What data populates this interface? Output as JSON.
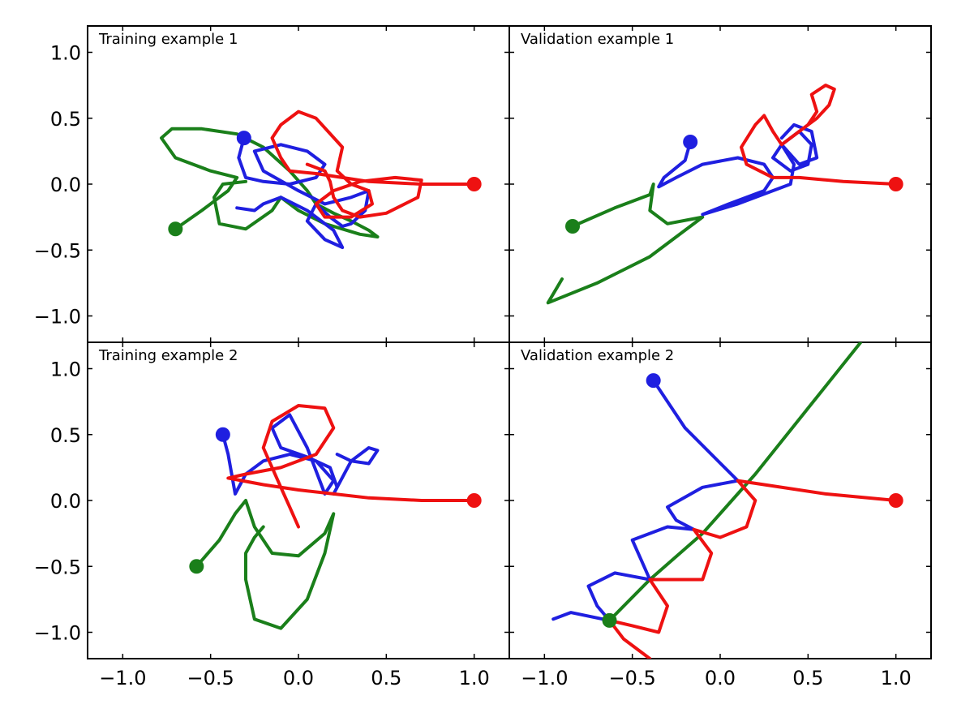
{
  "chart_data": [
    {
      "type": "line",
      "title": "Training example 1",
      "xlim": [
        -1.2,
        1.2
      ],
      "ylim": [
        -1.2,
        1.2
      ],
      "xticks": [
        -1.0,
        -0.5,
        0.0,
        0.5,
        1.0
      ],
      "yticks": [
        1.0,
        0.5,
        0.0,
        -0.5,
        -1.0
      ],
      "series": [
        {
          "name": "green",
          "color": "#1a7f1a",
          "start": [
            -0.7,
            -0.34
          ],
          "x": [
            -0.7,
            -0.55,
            -0.4,
            -0.35,
            -0.5,
            -0.7,
            -0.78,
            -0.72,
            -0.55,
            -0.35,
            -0.2,
            -0.05,
            0.05,
            0.1,
            0.2,
            0.3,
            0.4,
            0.45,
            0.35,
            0.15,
            0.0,
            -0.1,
            -0.15,
            -0.3,
            -0.45,
            -0.48,
            -0.43,
            -0.3
          ],
          "y": [
            -0.34,
            -0.2,
            -0.05,
            0.05,
            0.1,
            0.2,
            0.35,
            0.42,
            0.42,
            0.38,
            0.28,
            0.1,
            -0.05,
            -0.15,
            -0.22,
            -0.28,
            -0.35,
            -0.4,
            -0.38,
            -0.3,
            -0.2,
            -0.1,
            -0.2,
            -0.34,
            -0.3,
            -0.1,
            0.0,
            0.02
          ]
        },
        {
          "name": "blue",
          "color": "#1f1fe0",
          "start": [
            -0.31,
            0.35
          ],
          "x": [
            -0.31,
            -0.34,
            -0.3,
            -0.2,
            -0.05,
            0.1,
            0.15,
            0.05,
            -0.1,
            -0.25,
            -0.2,
            0.0,
            0.15,
            0.3,
            0.4,
            0.38,
            0.3,
            0.25,
            0.18,
            0.1,
            0.05,
            0.15,
            0.25,
            0.2,
            0.05,
            -0.1,
            -0.2,
            -0.25,
            -0.35
          ],
          "y": [
            0.35,
            0.2,
            0.05,
            0.02,
            0.0,
            0.05,
            0.15,
            0.25,
            0.3,
            0.25,
            0.1,
            -0.05,
            -0.15,
            -0.1,
            -0.05,
            -0.2,
            -0.3,
            -0.32,
            -0.25,
            -0.15,
            -0.28,
            -0.42,
            -0.48,
            -0.35,
            -0.2,
            -0.1,
            -0.15,
            -0.2,
            -0.18
          ]
        },
        {
          "name": "red",
          "color": "#ee1111",
          "start": [
            1.0,
            0.0
          ],
          "x": [
            1.0,
            0.7,
            0.4,
            0.25,
            0.1,
            -0.05,
            -0.1,
            -0.15,
            -0.1,
            0.0,
            0.1,
            0.25,
            0.22,
            0.3,
            0.4,
            0.42,
            0.3,
            0.15,
            0.1,
            0.2,
            0.35,
            0.55,
            0.7,
            0.68,
            0.5,
            0.35,
            0.25,
            0.2,
            0.18,
            0.15,
            0.05
          ],
          "y": [
            0.0,
            0.0,
            0.02,
            0.05,
            0.08,
            0.1,
            0.2,
            0.35,
            0.45,
            0.55,
            0.5,
            0.28,
            0.1,
            0.0,
            -0.05,
            -0.15,
            -0.25,
            -0.25,
            -0.15,
            -0.05,
            0.02,
            0.05,
            0.03,
            -0.1,
            -0.22,
            -0.25,
            -0.2,
            -0.1,
            0.02,
            0.1,
            0.15
          ]
        }
      ]
    },
    {
      "type": "line",
      "title": "Validation example 1",
      "xlim": [
        -1.2,
        1.2
      ],
      "ylim": [
        -1.2,
        1.2
      ],
      "xticks": [
        -1.0,
        -0.5,
        0.0,
        0.5,
        1.0
      ],
      "yticks": [
        1.0,
        0.5,
        0.0,
        -0.5,
        -1.0
      ],
      "series": [
        {
          "name": "green",
          "color": "#1a7f1a",
          "start": [
            -0.84,
            -0.32
          ],
          "x": [
            -0.84,
            -0.6,
            -0.4,
            -0.38,
            -0.4,
            -0.3,
            -0.1,
            -0.4,
            -0.7,
            -0.98,
            -0.9
          ],
          "y": [
            -0.32,
            -0.18,
            -0.08,
            0.0,
            -0.2,
            -0.3,
            -0.25,
            -0.55,
            -0.75,
            -0.9,
            -0.72
          ]
        },
        {
          "name": "blue",
          "color": "#1f1fe0",
          "start": [
            -0.17,
            0.32
          ],
          "x": [
            -0.17,
            -0.2,
            -0.32,
            -0.35,
            -0.25,
            -0.1,
            0.1,
            0.25,
            0.3,
            0.25,
            0.15,
            0.05,
            -0.1,
            0.1,
            0.3,
            0.4,
            0.42,
            0.35,
            0.3,
            0.4,
            0.5,
            0.52,
            0.45,
            0.35,
            0.45,
            0.55,
            0.52,
            0.42,
            0.35
          ],
          "y": [
            0.32,
            0.18,
            0.05,
            -0.02,
            0.05,
            0.15,
            0.2,
            0.15,
            0.05,
            -0.05,
            -0.1,
            -0.15,
            -0.23,
            -0.15,
            -0.05,
            0.0,
            0.15,
            0.3,
            0.2,
            0.1,
            0.15,
            0.3,
            0.4,
            0.3,
            0.15,
            0.2,
            0.4,
            0.45,
            0.35
          ]
        },
        {
          "name": "red",
          "color": "#ee1111",
          "start": [
            1.0,
            0.0
          ],
          "x": [
            1.0,
            0.7,
            0.45,
            0.3,
            0.15,
            0.12,
            0.2,
            0.25,
            0.3,
            0.35,
            0.4,
            0.5,
            0.55,
            0.52,
            0.6,
            0.65,
            0.62,
            0.55,
            0.5,
            0.45
          ],
          "y": [
            0.0,
            0.02,
            0.05,
            0.05,
            0.15,
            0.28,
            0.45,
            0.52,
            0.4,
            0.3,
            0.35,
            0.45,
            0.55,
            0.68,
            0.75,
            0.72,
            0.6,
            0.5,
            0.45,
            0.4
          ]
        }
      ]
    },
    {
      "type": "line",
      "title": "Training example 2",
      "xlim": [
        -1.2,
        1.2
      ],
      "ylim": [
        -1.2,
        1.2
      ],
      "xticks": [
        -1.0,
        -0.5,
        0.0,
        0.5,
        1.0
      ],
      "yticks": [
        1.0,
        0.5,
        0.0,
        -0.5,
        -1.0
      ],
      "series": [
        {
          "name": "green",
          "color": "#1a7f1a",
          "start": [
            -0.58,
            -0.5
          ],
          "x": [
            -0.58,
            -0.45,
            -0.36,
            -0.3,
            -0.25,
            -0.15,
            0.0,
            0.15,
            0.2,
            0.15,
            0.05,
            -0.1,
            -0.25,
            -0.3,
            -0.3,
            -0.25,
            -0.2
          ],
          "y": [
            -0.5,
            -0.3,
            -0.1,
            0.0,
            -0.2,
            -0.4,
            -0.42,
            -0.25,
            -0.1,
            -0.4,
            -0.75,
            -0.97,
            -0.9,
            -0.6,
            -0.4,
            -0.28,
            -0.2
          ]
        },
        {
          "name": "blue",
          "color": "#1f1fe0",
          "start": [
            -0.43,
            0.5
          ],
          "x": [
            -0.43,
            -0.4,
            -0.36,
            -0.3,
            -0.2,
            -0.05,
            0.1,
            0.2,
            0.15,
            0.05,
            -0.05,
            -0.15,
            -0.1,
            0.05,
            0.18,
            0.22,
            0.2,
            0.3,
            0.4,
            0.45,
            0.4,
            0.3,
            0.22
          ],
          "y": [
            0.5,
            0.35,
            0.05,
            0.2,
            0.3,
            0.35,
            0.3,
            0.15,
            0.05,
            0.4,
            0.65,
            0.55,
            0.4,
            0.33,
            0.25,
            0.1,
            0.05,
            0.3,
            0.4,
            0.38,
            0.28,
            0.3,
            0.35
          ]
        },
        {
          "name": "red",
          "color": "#ee1111",
          "start": [
            1.0,
            0.0
          ],
          "x": [
            1.0,
            0.7,
            0.4,
            0.2,
            0.0,
            -0.2,
            -0.4,
            -0.3,
            -0.1,
            0.1,
            0.2,
            0.15,
            0.0,
            -0.15,
            -0.2,
            -0.1,
            -0.05,
            0.0
          ],
          "y": [
            0.0,
            0.0,
            0.02,
            0.05,
            0.08,
            0.12,
            0.17,
            0.2,
            0.25,
            0.35,
            0.55,
            0.7,
            0.72,
            0.6,
            0.4,
            0.1,
            -0.05,
            -0.2
          ]
        }
      ]
    },
    {
      "type": "line",
      "title": "Validation example 2",
      "xlim": [
        -1.2,
        1.2
      ],
      "ylim": [
        -1.2,
        1.2
      ],
      "xticks": [
        -1.0,
        -0.5,
        0.0,
        0.5,
        1.0
      ],
      "yticks": [
        1.0,
        0.5,
        0.0,
        -0.5,
        -1.0
      ],
      "series": [
        {
          "name": "green",
          "color": "#1a7f1a",
          "start": [
            -0.63,
            -0.91
          ],
          "x": [
            -0.63,
            -0.4,
            -0.1,
            0.2,
            0.5,
            0.8
          ],
          "y": [
            -0.91,
            -0.6,
            -0.25,
            0.2,
            0.7,
            1.2
          ]
        },
        {
          "name": "blue",
          "color": "#1f1fe0",
          "start": [
            -0.38,
            0.91
          ],
          "x": [
            -0.38,
            -0.2,
            0.1,
            -0.1,
            -0.3,
            -0.25,
            -0.15,
            -0.3,
            -0.5,
            -0.45,
            -0.4,
            -0.6,
            -0.75,
            -0.7,
            -0.63,
            -0.85,
            -0.95
          ],
          "y": [
            0.91,
            0.55,
            0.15,
            0.1,
            -0.05,
            -0.15,
            -0.22,
            -0.2,
            -0.3,
            -0.45,
            -0.6,
            -0.55,
            -0.65,
            -0.8,
            -0.91,
            -0.85,
            -0.9
          ]
        },
        {
          "name": "red",
          "color": "#ee1111",
          "start": [
            1.0,
            0.0
          ],
          "x": [
            1.0,
            0.6,
            0.25,
            0.1,
            0.2,
            0.15,
            0.0,
            -0.15,
            -0.05,
            -0.1,
            -0.25,
            -0.4,
            -0.3,
            -0.35,
            -0.5,
            -0.63,
            -0.55,
            -0.45,
            -0.4
          ],
          "y": [
            0.0,
            0.05,
            0.12,
            0.15,
            0.0,
            -0.2,
            -0.28,
            -0.22,
            -0.4,
            -0.6,
            -0.6,
            -0.6,
            -0.8,
            -1.0,
            -0.95,
            -0.91,
            -1.05,
            -1.15,
            -1.2
          ]
        }
      ]
    }
  ]
}
